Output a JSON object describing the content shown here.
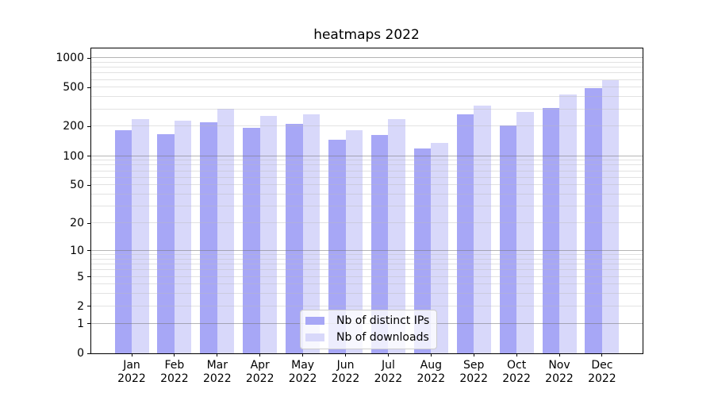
{
  "chart_data": {
    "type": "bar",
    "title": "heatmaps 2022",
    "categories": [
      "Jan 2022",
      "Feb 2022",
      "Mar 2022",
      "Apr 2022",
      "May 2022",
      "Jun 2022",
      "Jul 2022",
      "Aug 2022",
      "Sep 2022",
      "Oct 2022",
      "Nov 2022",
      "Dec 2022"
    ],
    "series": [
      {
        "name": "Nb of distinct IPs",
        "color": "#a7a7f6",
        "values": [
          184,
          168,
          221,
          193,
          214,
          148,
          164,
          120,
          269,
          204,
          310,
          495
        ]
      },
      {
        "name": "Nb of downloads",
        "color": "#d8d8fa",
        "values": [
          240,
          228,
          306,
          258,
          269,
          183,
          239,
          136,
          326,
          283,
          424,
          591
        ]
      }
    ],
    "xlabel": "",
    "ylabel": "",
    "yscale": "log1p",
    "ylim": [
      0,
      1250
    ],
    "yticks": [
      0,
      1,
      2,
      5,
      10,
      20,
      50,
      100,
      200,
      500,
      1000
    ],
    "ytick_labels": [
      "0",
      "1",
      "2",
      "5",
      "10",
      "20",
      "50",
      "100",
      "200",
      "500",
      "1000"
    ],
    "major_gridlines": [
      1,
      10,
      100,
      1000
    ],
    "minor_gridlines": [
      2,
      3,
      4,
      5,
      6,
      7,
      8,
      9,
      20,
      30,
      40,
      50,
      60,
      70,
      80,
      90,
      200,
      300,
      400,
      500,
      600,
      700,
      800,
      900
    ],
    "grid": true,
    "legend_position": "lower center"
  },
  "legend": {
    "entries": [
      {
        "label": "Nb of distinct IPs",
        "color": "#a7a7f6"
      },
      {
        "label": "Nb of downloads",
        "color": "#d8d8fa"
      }
    ]
  },
  "colors": {
    "bar_distinct_ips": "#a7a7f6",
    "bar_downloads": "#d8d8fa",
    "major_grid": "#b0b0b0",
    "minor_grid": "#e4e4e4",
    "spine": "#000000",
    "text": "#000000",
    "legend_border": "#cccccc"
  }
}
